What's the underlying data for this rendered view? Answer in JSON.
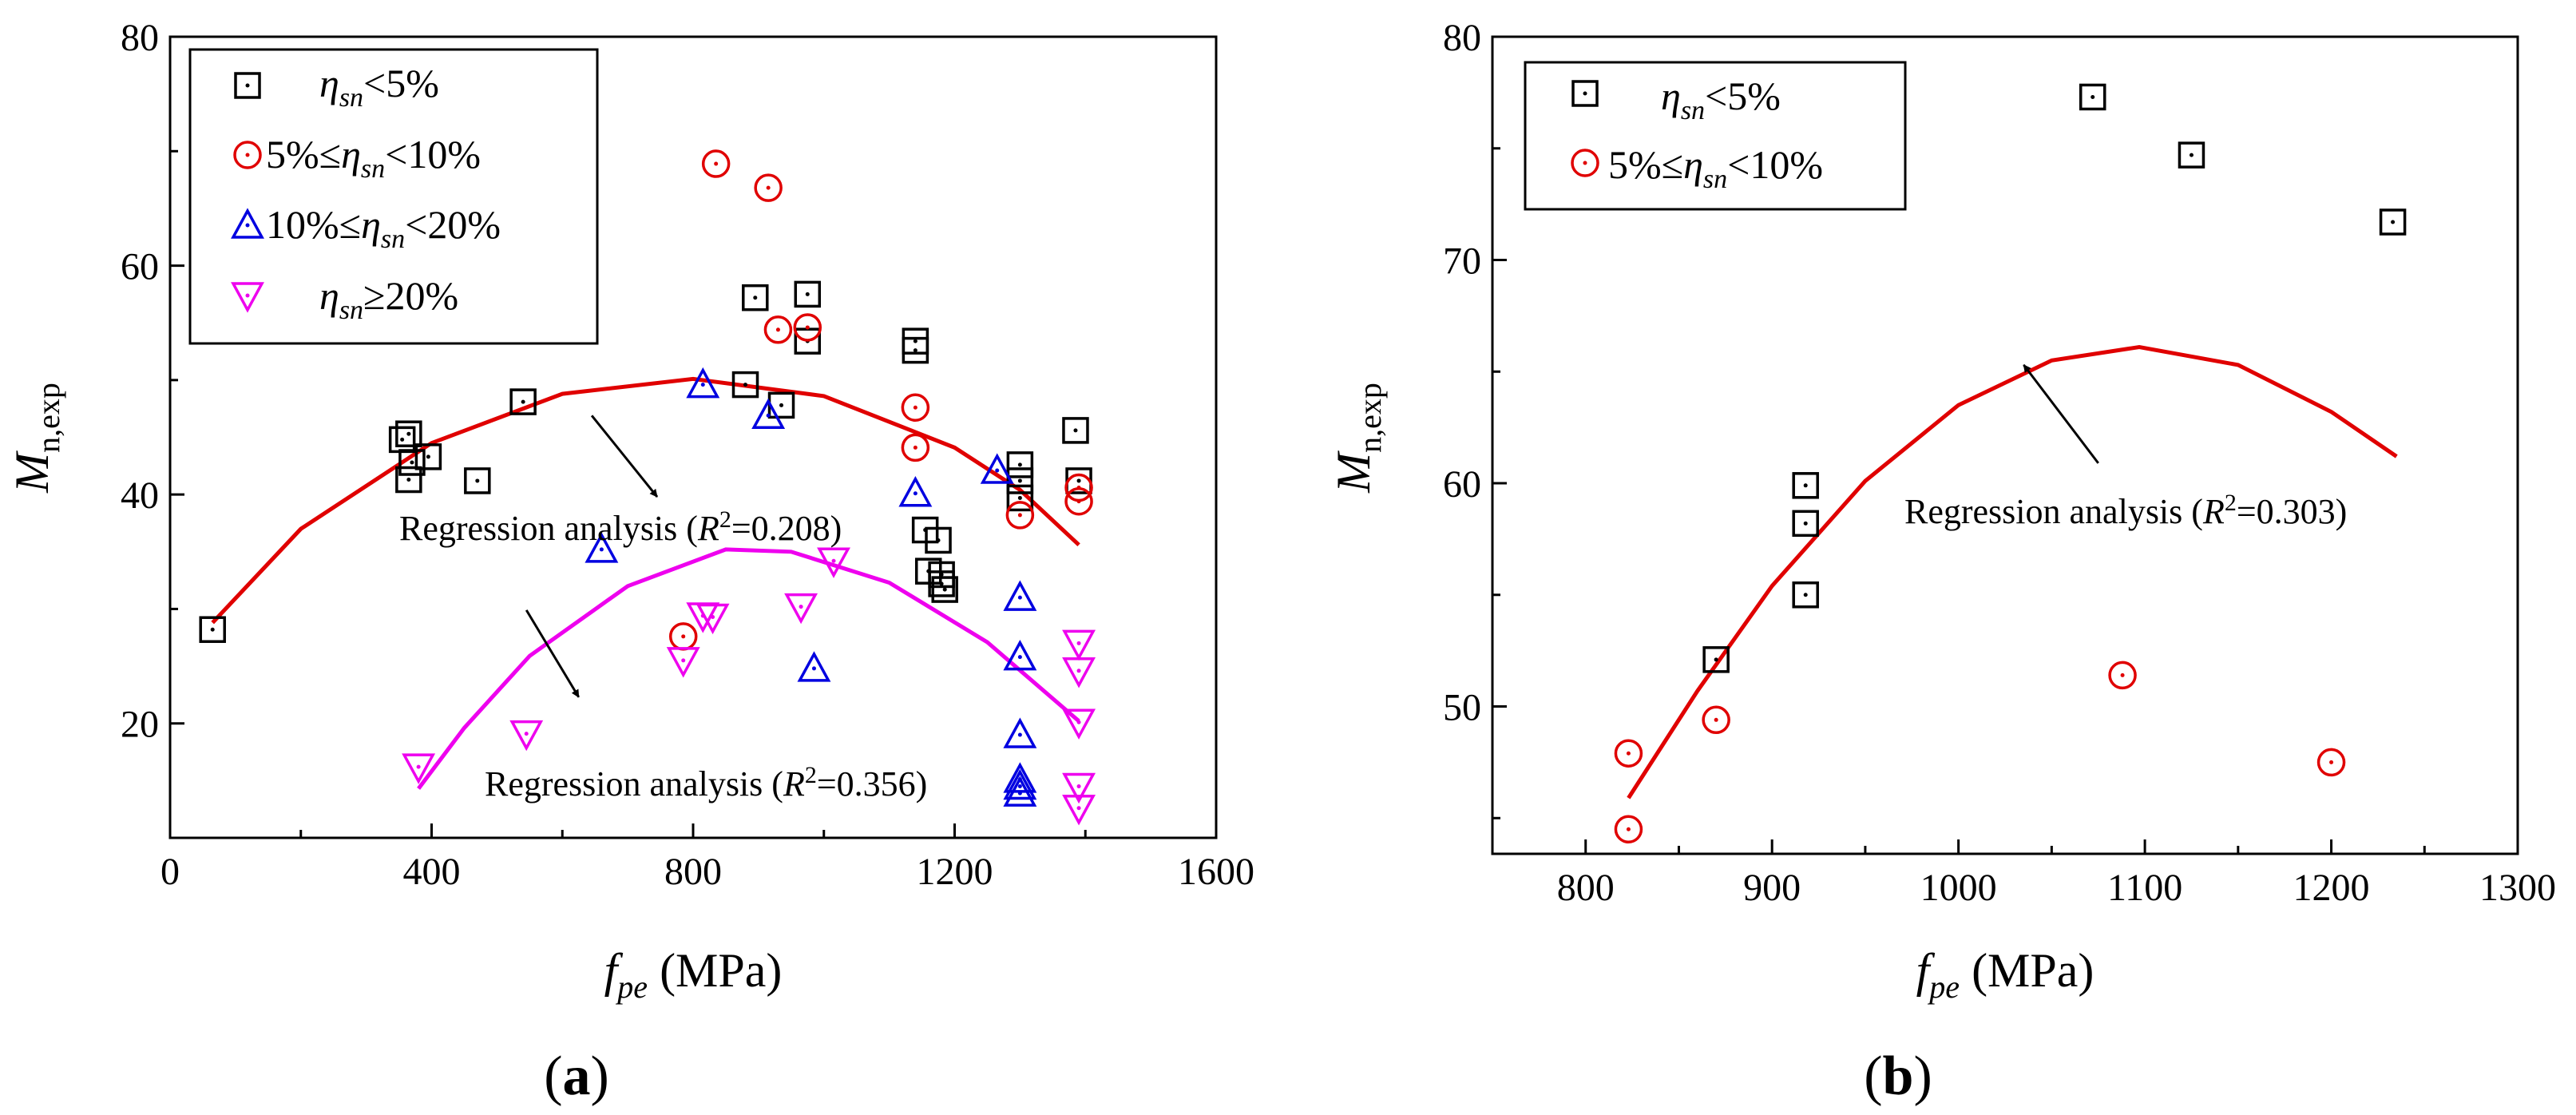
{
  "chart_data": [
    {
      "type": "scatter",
      "panel_label": "(a)",
      "label_open": "(",
      "label_letter": "a",
      "label_close": ")",
      "xlabel": "fpe (MPa)",
      "ylabel": "Mn,exp",
      "xlim": [
        0,
        1600
      ],
      "ylim": [
        10,
        80
      ],
      "x_ticks": [
        0,
        400,
        800,
        1200,
        1600
      ],
      "y_ticks": [
        20,
        40,
        60,
        80
      ],
      "legend_position": "top-left",
      "series": [
        {
          "name": "ηsn<5%",
          "marker": "square",
          "color": "#000000",
          "points": [
            [
              65,
              28.2
            ],
            [
              355,
              44.8
            ],
            [
              365,
              45.3
            ],
            [
              365,
              41.3
            ],
            [
              370,
              42.8
            ],
            [
              395,
              43.3
            ],
            [
              470,
              41.2
            ],
            [
              540,
              48.1
            ],
            [
              880,
              49.6
            ],
            [
              895,
              57.2
            ],
            [
              935,
              47.8
            ],
            [
              975,
              57.5
            ],
            [
              975,
              53.4
            ],
            [
              1140,
              53.4
            ],
            [
              1140,
              52.6
            ],
            [
              1155,
              36.9
            ],
            [
              1160,
              33.3
            ],
            [
              1175,
              36.0
            ],
            [
              1180,
              33.0
            ],
            [
              1180,
              32.2
            ],
            [
              1185,
              31.7
            ],
            [
              1300,
              42.6
            ],
            [
              1300,
              41.2
            ],
            [
              1300,
              39.7
            ],
            [
              1385,
              45.6
            ],
            [
              1390,
              41.2
            ]
          ]
        },
        {
          "name": "5%≤ηsn<10%",
          "marker": "circle",
          "color": "#e00000",
          "points": [
            [
              785,
              27.6
            ],
            [
              835,
              68.9
            ],
            [
              915,
              66.8
            ],
            [
              930,
              54.4
            ],
            [
              975,
              54.6
            ],
            [
              1140,
              47.6
            ],
            [
              1140,
              44.1
            ],
            [
              1300,
              38.2
            ],
            [
              1390,
              40.6
            ],
            [
              1390,
              39.4
            ]
          ]
        },
        {
          "name": "10%≤ηsn<20%",
          "marker": "triangle-up",
          "color": "#0000e0",
          "points": [
            [
              660,
              35.2
            ],
            [
              815,
              49.6
            ],
            [
              915,
              46.9
            ],
            [
              985,
              24.8
            ],
            [
              1140,
              40.1
            ],
            [
              1265,
              42.1
            ],
            [
              1300,
              31.0
            ],
            [
              1300,
              25.8
            ],
            [
              1300,
              19.0
            ],
            [
              1300,
              15.1
            ],
            [
              1300,
              14.5
            ],
            [
              1300,
              13.9
            ]
          ]
        },
        {
          "name": "ηsn≥20%",
          "marker": "triangle-down",
          "color": "#ee00ee",
          "points": [
            [
              380,
              16.2
            ],
            [
              545,
              19.1
            ],
            [
              785,
              25.5
            ],
            [
              815,
              29.4
            ],
            [
              830,
              29.3
            ],
            [
              965,
              30.2
            ],
            [
              1015,
              34.2
            ],
            [
              1390,
              27.0
            ],
            [
              1390,
              24.6
            ],
            [
              1390,
              20.1
            ],
            [
              1390,
              14.5
            ],
            [
              1390,
              12.6
            ]
          ]
        }
      ],
      "fits": [
        {
          "name": "upper fit",
          "color": "#e00000",
          "points": [
            [
              65,
              28.8
            ],
            [
              200,
              37.0
            ],
            [
              400,
              44.5
            ],
            [
              600,
              48.8
            ],
            [
              800,
              50.1
            ],
            [
              1000,
              48.6
            ],
            [
              1200,
              44.1
            ],
            [
              1300,
              40.4
            ],
            [
              1390,
              35.6
            ]
          ]
        },
        {
          "name": "lower fit",
          "color": "#ee00ee",
          "points": [
            [
              380,
              14.3
            ],
            [
              450,
              19.6
            ],
            [
              550,
              25.9
            ],
            [
              700,
              32.0
            ],
            [
              850,
              35.2
            ],
            [
              950,
              35.0
            ],
            [
              1100,
              32.3
            ],
            [
              1250,
              27.1
            ],
            [
              1390,
              20.2
            ]
          ]
        }
      ],
      "annotations": [
        {
          "text": "Regression analysis (R2=0.208)",
          "prefix": "Regression analysis (",
          "r": "R",
          "sup": "2",
          "suffix": "=0.208)",
          "arrow_from": [
            645,
            46.9
          ],
          "arrow_to": [
            745,
            39.8
          ]
        },
        {
          "text": "Regression analysis (R2=0.356)",
          "prefix": "Regression analysis (",
          "r": "R",
          "sup": "2",
          "suffix": "=0.356)",
          "arrow_from": [
            545,
            29.9
          ],
          "arrow_to": [
            625,
            22.3
          ]
        }
      ]
    },
    {
      "type": "scatter",
      "panel_label": "(b)",
      "label_open": "(",
      "label_letter": "b",
      "label_close": ")",
      "xlabel": "fpe (MPa)",
      "ylabel": "Mn,exp",
      "xlim": [
        750,
        1300
      ],
      "ylim": [
        43.4,
        80
      ],
      "x_ticks": [
        800,
        900,
        1000,
        1100,
        1200,
        1300
      ],
      "y_ticks": [
        50,
        60,
        70,
        80
      ],
      "legend_position": "top-left",
      "series": [
        {
          "name": "ηsn<5%",
          "marker": "square",
          "color": "#000000",
          "points": [
            [
              870,
              52.1
            ],
            [
              918,
              59.9
            ],
            [
              918,
              58.2
            ],
            [
              918,
              55.0
            ],
            [
              1072,
              77.3
            ],
            [
              1125,
              74.7
            ],
            [
              1233,
              71.7
            ]
          ]
        },
        {
          "name": "5%≤ηsn<10%",
          "marker": "circle",
          "color": "#e00000",
          "points": [
            [
              823,
              47.9
            ],
            [
              823,
              44.5
            ],
            [
              870,
              49.4
            ],
            [
              1088,
              51.4
            ],
            [
              1200,
              47.5
            ]
          ]
        }
      ],
      "fits": [
        {
          "name": "fit",
          "color": "#e00000",
          "points": [
            [
              823,
              45.9
            ],
            [
              860,
              50.7
            ],
            [
              900,
              55.4
            ],
            [
              950,
              60.1
            ],
            [
              1000,
              63.5
            ],
            [
              1050,
              65.5
            ],
            [
              1097,
              66.1
            ],
            [
              1150,
              65.3
            ],
            [
              1200,
              63.2
            ],
            [
              1235,
              61.2
            ]
          ]
        }
      ],
      "annotations": [
        {
          "text": "Regression analysis (R2=0.303)",
          "prefix": "Regression analysis (",
          "r": "R",
          "sup": "2",
          "suffix": "=0.303)",
          "arrow_from": [
            1075,
            60.9
          ],
          "arrow_to": [
            1035,
            65.3
          ]
        }
      ]
    }
  ]
}
